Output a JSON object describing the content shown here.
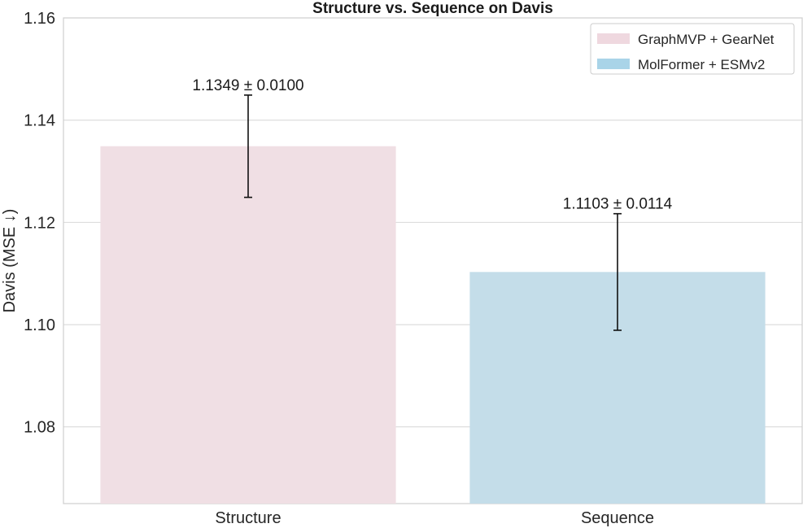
{
  "chart_data": {
    "type": "bar",
    "title": "Structure vs. Sequence on Davis",
    "xlabel": "",
    "ylabel": "Davis (MSE ↓)",
    "categories": [
      "Structure",
      "Sequence"
    ],
    "series": [
      {
        "name": "GraphMVP + GearNet",
        "category": "Structure",
        "value": 1.1349,
        "error": 0.01,
        "label": "1.1349 ± 0.0100",
        "color": "#f0dfe4"
      },
      {
        "name": "MolFormer + ESMv2",
        "category": "Sequence",
        "value": 1.1103,
        "error": 0.0114,
        "label": "1.1103 ± 0.0114",
        "color": "#c4dde9"
      }
    ],
    "ylim": [
      1.065,
      1.16
    ],
    "yticks": [
      1.08,
      1.1,
      1.12,
      1.14,
      1.16
    ],
    "ytick_labels": [
      "1.08",
      "1.10",
      "1.12",
      "1.14",
      "1.16"
    ],
    "grid": true,
    "legend_position": "top-right",
    "legend_colors": [
      "#efd8df",
      "#a9d4e8"
    ]
  }
}
